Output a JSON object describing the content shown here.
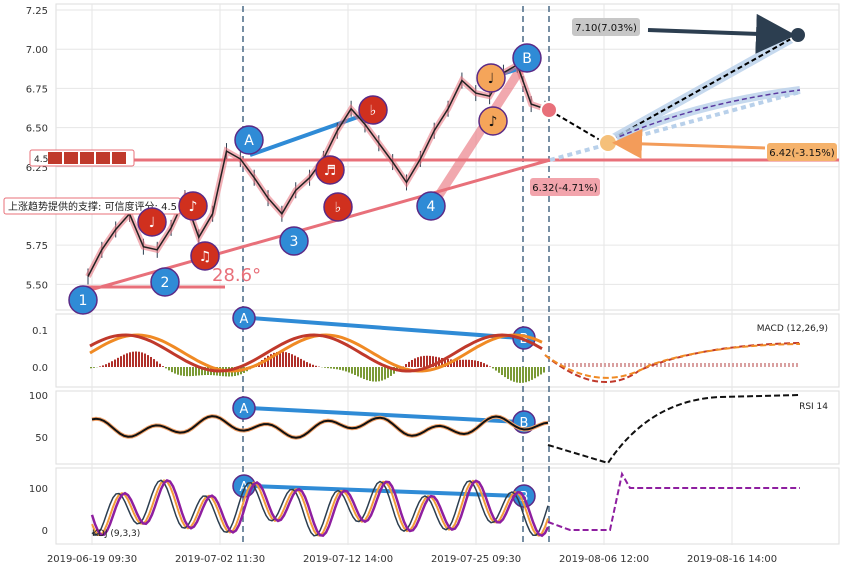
{
  "chart_data": [
    {
      "type": "line",
      "panel": "price",
      "ylim": [
        5.4,
        7.25
      ],
      "y_ticks": [
        "7.25",
        "7.00",
        "6.75",
        "6.50",
        "6.25",
        "5.75",
        "5.50"
      ],
      "x_ticks": [
        "2019-06-19 09:30",
        "2019-07-02 11:30",
        "2019-07-12 14:00",
        "2019-07-25 09:30",
        "2019-08-06 12:00",
        "2019-08-16 14:00"
      ],
      "series": [
        {
          "values": [
            5.55,
            5.72,
            5.85,
            5.95,
            5.74,
            5.72,
            5.86,
            6.05,
            5.8,
            5.95,
            6.35,
            6.3,
            6.18,
            6.05,
            5.95,
            6.1,
            6.18,
            6.3,
            6.48,
            6.62,
            6.52,
            6.4,
            6.28,
            6.15,
            6.3,
            6.48,
            6.62,
            6.8,
            6.72,
            6.7,
            6.85,
            6.9,
            6.65,
            6.62
          ]
        }
      ],
      "wave_labels": [
        "1",
        "2",
        "3",
        "4",
        "A",
        "B"
      ],
      "fib_note_labels": [
        "♩",
        "♪",
        "♫",
        "♬",
        "♭"
      ],
      "annotations": {
        "upper_target": "7.10(7.03%)",
        "mid_target": "6.42(-3.15%)",
        "support_value": "6.32(-4.71%)",
        "support_text": "上涨趋势提供的支撑: 可信度评分: 4.5",
        "rating_text": "4.5",
        "angle_text": "28.6°"
      }
    },
    {
      "type": "line",
      "panel": "macd",
      "label": "MACD (12,26,9)",
      "y_ticks": [
        "0.1",
        "0.0"
      ]
    },
    {
      "type": "line",
      "panel": "rsi",
      "label": "RSI 14",
      "y_ticks": [
        "100",
        "50"
      ]
    },
    {
      "type": "line",
      "panel": "kdj",
      "label": "KDJ (9,3,3)",
      "y_ticks": [
        "100",
        "0"
      ]
    }
  ]
}
